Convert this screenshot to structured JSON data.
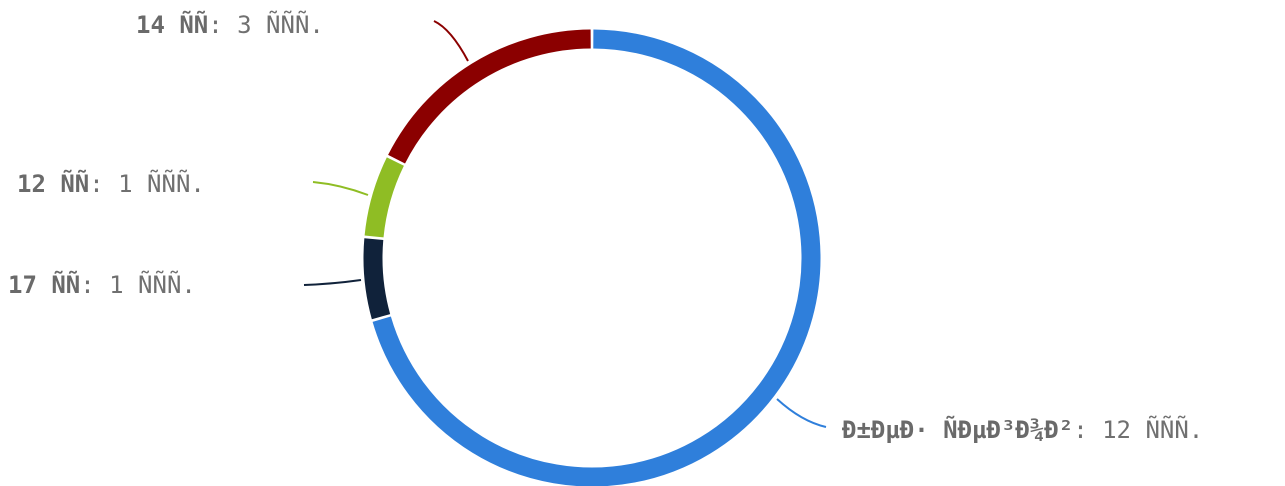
{
  "chart_data": {
    "type": "pie",
    "variant": "donut",
    "slices": [
      {
        "category": "Ð±ÐµÐ· ÑÐµÐ³Ð¾Ð²",
        "value": 12,
        "value_label": "12 ÑÑÑ.",
        "color": "#2f7fdb"
      },
      {
        "category": "17 ÑÑ",
        "value": 1,
        "value_label": "1 ÑÑÑ.",
        "color": "#10223a"
      },
      {
        "category": "12 ÑÑ",
        "value": 1,
        "value_label": "1 ÑÑÑ.",
        "color": "#8fbd24"
      },
      {
        "category": "14 ÑÑ",
        "value": 3,
        "value_label": "3 ÑÑÑ.",
        "color": "#8b0000"
      }
    ],
    "separator": ":",
    "legend": "none",
    "start": "top",
    "direction": "clockwise"
  }
}
